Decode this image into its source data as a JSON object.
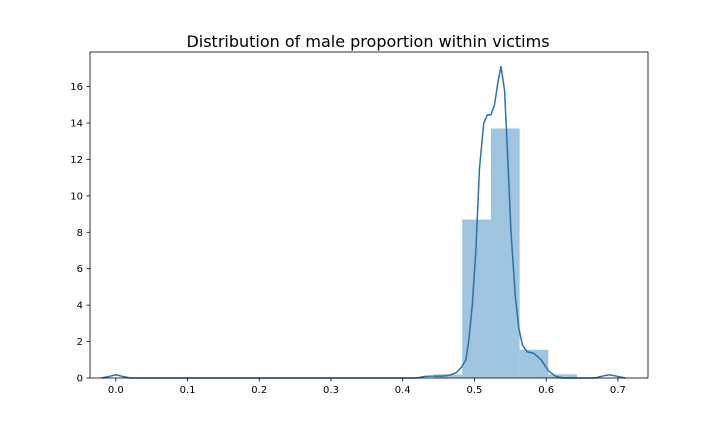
{
  "chart_data": {
    "type": "histogram",
    "title": "Distribution of male proportion within victims",
    "xlabel": "",
    "ylabel": "",
    "xlim": [
      -0.036,
      0.742
    ],
    "ylim": [
      0,
      17.9
    ],
    "xticks": [
      0.0,
      0.1,
      0.2,
      0.3,
      0.4,
      0.5,
      0.6,
      0.7
    ],
    "xtick_labels": [
      "0.0",
      "0.1",
      "0.2",
      "0.3",
      "0.4",
      "0.5",
      "0.6",
      "0.7"
    ],
    "yticks": [
      0,
      2,
      4,
      6,
      8,
      10,
      12,
      14,
      16
    ],
    "ytick_labels": [
      "0",
      "2",
      "4",
      "6",
      "8",
      "10",
      "12",
      "14",
      "16"
    ],
    "grid": false,
    "bar_color": "#9fc5e0",
    "line_color": "#2a72a7",
    "bins": [
      {
        "x0": 0.443,
        "x1": 0.483,
        "height": 0.2
      },
      {
        "x0": 0.483,
        "x1": 0.523,
        "height": 8.7
      },
      {
        "x0": 0.523,
        "x1": 0.563,
        "height": 13.7
      },
      {
        "x0": 0.563,
        "x1": 0.603,
        "height": 1.55
      },
      {
        "x0": 0.603,
        "x1": 0.643,
        "height": 0.2
      }
    ],
    "kde": [
      [
        -0.02,
        0.0
      ],
      [
        -0.01,
        0.08
      ],
      [
        0.0,
        0.18
      ],
      [
        0.01,
        0.08
      ],
      [
        0.02,
        0.0
      ],
      [
        0.42,
        0.0
      ],
      [
        0.43,
        0.08
      ],
      [
        0.44,
        0.1
      ],
      [
        0.455,
        0.1
      ],
      [
        0.465,
        0.15
      ],
      [
        0.475,
        0.3
      ],
      [
        0.482,
        0.6
      ],
      [
        0.488,
        1.0
      ],
      [
        0.492,
        2.0
      ],
      [
        0.497,
        4.0
      ],
      [
        0.502,
        7.0
      ],
      [
        0.507,
        11.5
      ],
      [
        0.513,
        14.0
      ],
      [
        0.518,
        14.45
      ],
      [
        0.523,
        14.45
      ],
      [
        0.528,
        15.0
      ],
      [
        0.533,
        16.3
      ],
      [
        0.537,
        17.1
      ],
      [
        0.542,
        15.8
      ],
      [
        0.546,
        12.5
      ],
      [
        0.551,
        8.0
      ],
      [
        0.557,
        4.5
      ],
      [
        0.562,
        2.7
      ],
      [
        0.567,
        1.8
      ],
      [
        0.573,
        1.45
      ],
      [
        0.583,
        1.35
      ],
      [
        0.593,
        1.0
      ],
      [
        0.603,
        0.4
      ],
      [
        0.613,
        0.1
      ],
      [
        0.623,
        0.0
      ],
      [
        0.668,
        0.0
      ],
      [
        0.678,
        0.1
      ],
      [
        0.688,
        0.18
      ],
      [
        0.698,
        0.1
      ],
      [
        0.71,
        0.0
      ]
    ]
  }
}
